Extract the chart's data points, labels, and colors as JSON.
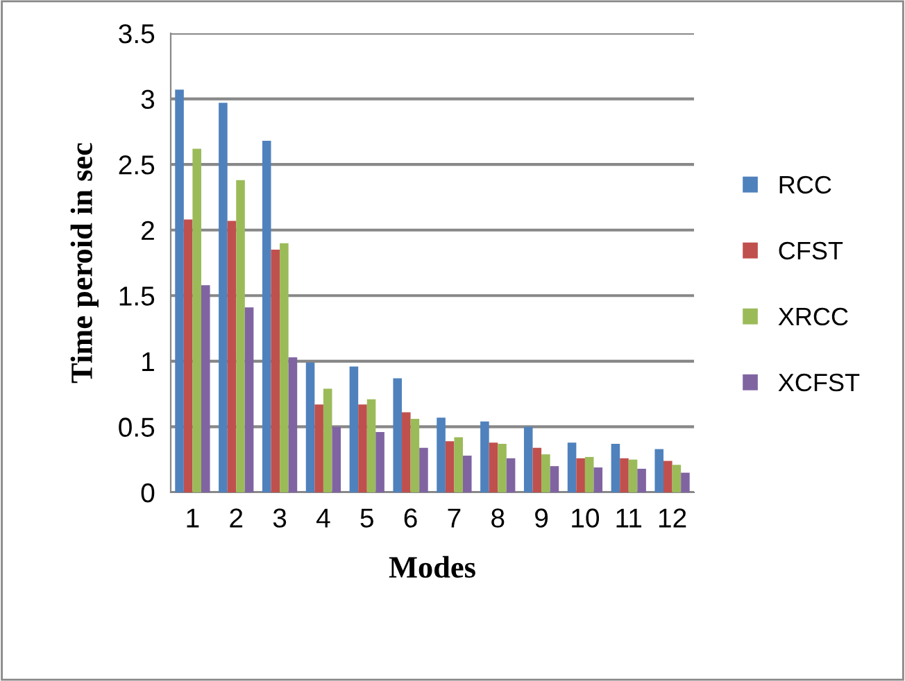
{
  "chart_data": {
    "type": "bar",
    "xlabel": "Modes",
    "ylabel": "Time peroid in sec",
    "categories": [
      "1",
      "2",
      "3",
      "4",
      "5",
      "6",
      "7",
      "8",
      "9",
      "10",
      "11",
      "12"
    ],
    "series": [
      {
        "name": "RCC",
        "color": "#4f81bd",
        "values": [
          3.07,
          2.97,
          2.68,
          0.99,
          0.96,
          0.87,
          0.57,
          0.54,
          0.5,
          0.38,
          0.37,
          0.33
        ]
      },
      {
        "name": "CFST",
        "color": "#c0504d",
        "values": [
          2.08,
          2.07,
          1.85,
          0.67,
          0.67,
          0.61,
          0.39,
          0.38,
          0.34,
          0.26,
          0.26,
          0.24
        ]
      },
      {
        "name": "XRCC",
        "color": "#9bbb59",
        "values": [
          2.62,
          2.38,
          1.9,
          0.79,
          0.71,
          0.56,
          0.42,
          0.37,
          0.29,
          0.27,
          0.25,
          0.21
        ]
      },
      {
        "name": "XCFST",
        "color": "#8064a2",
        "values": [
          1.58,
          1.41,
          1.03,
          0.5,
          0.46,
          0.34,
          0.28,
          0.26,
          0.2,
          0.19,
          0.18,
          0.15
        ]
      }
    ],
    "ylim": [
      0,
      3.5
    ],
    "yticks": [
      0,
      0.5,
      1,
      1.5,
      2,
      2.5,
      3,
      3.5
    ],
    "grid": "y",
    "legend": "right"
  }
}
